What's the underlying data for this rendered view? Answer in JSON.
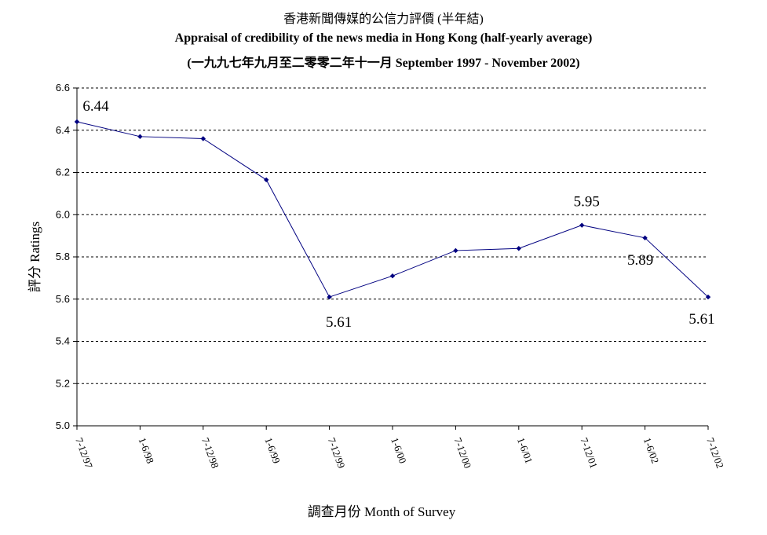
{
  "chart_data": {
    "type": "line",
    "title": "香港新聞傳媒的公信力評價 (半年結)",
    "subtitle": "Appraisal of credibility of the news media in Hong Kong (half-yearly average)",
    "subtitle2": "(一九九七年九月至二零零二年十一月 September 1997 - November 2002)",
    "xlabel": "調查月份 Month of Survey",
    "ylabel": "評分 Ratings",
    "categories": [
      "7-12/97",
      "1-6/98",
      "7-12/98",
      "1-6/99",
      "7-12/99",
      "1-6/00",
      "7-12/00",
      "1-6/01",
      "7-12/01",
      "1-6/02",
      "7-12/02"
    ],
    "series": [
      {
        "values": [
          6.44,
          6.37,
          6.36,
          6.165,
          5.61,
          5.71,
          5.83,
          5.84,
          5.95,
          5.89,
          5.61
        ]
      }
    ],
    "data_labels": [
      {
        "index": 0,
        "text": "6.44"
      },
      {
        "index": 4,
        "text": "5.61"
      },
      {
        "index": 8,
        "text": "5.95"
      },
      {
        "index": 9,
        "text": "5.89"
      },
      {
        "index": 10,
        "text": "5.61"
      }
    ],
    "ylim": [
      5.0,
      6.6
    ],
    "yticks": [
      "5.0",
      "5.2",
      "5.4",
      "5.6",
      "5.8",
      "6.0",
      "6.2",
      "6.4",
      "6.6"
    ],
    "grid": true,
    "line_color": "#000080"
  }
}
